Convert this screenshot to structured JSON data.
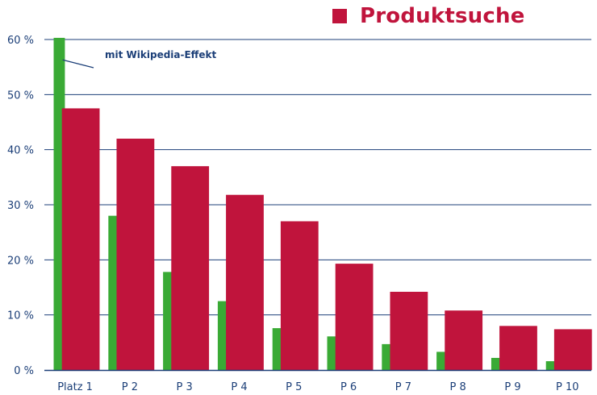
{
  "chart_data": {
    "type": "bar",
    "categories": [
      "Platz 1",
      "P 2",
      "P 3",
      "P 4",
      "P 5",
      "P 6",
      "P 7",
      "P 8",
      "P 9",
      "P 10"
    ],
    "series": [
      {
        "values": [
          60.3,
          28.0,
          17.8,
          12.5,
          7.6,
          6.1,
          4.7,
          3.3,
          2.2,
          1.6
        ],
        "color": "#3aaa35"
      },
      {
        "name": "Produktsuche",
        "values": [
          47.5,
          42.0,
          37.0,
          31.8,
          27.0,
          19.3,
          14.2,
          10.8,
          8.0,
          7.4
        ],
        "color": "#c0143c"
      }
    ],
    "ylim": [
      0,
      60
    ],
    "yticks": [
      0,
      10,
      20,
      30,
      40,
      50,
      60
    ],
    "ytick_labels": [
      "0 %",
      "10 %",
      "20 %",
      "30 %",
      "40 %",
      "50 %",
      "60 %"
    ],
    "grid": true,
    "legend": "top-right",
    "annotation": {
      "text": "mit Wikipedia-Effekt",
      "series_index": 0,
      "category_index": 0
    }
  },
  "colors": {
    "grid": "#1c3f78",
    "text": "#1c3f78",
    "legend_text": "#c0143c"
  }
}
